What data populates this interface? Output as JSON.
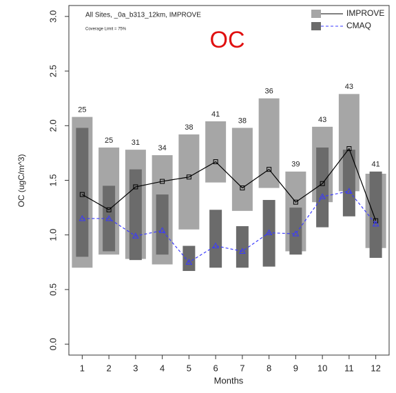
{
  "chart_data": {
    "type": "range",
    "title": "OC",
    "subtitle": "All Sites, _0a_b313_12km, IMPROVE",
    "note": "Coverage Limit = 75%",
    "x_label": "Months",
    "y_label": "OC (ugC/m^3)",
    "x": [
      1,
      2,
      3,
      4,
      5,
      6,
      7,
      8,
      9,
      10,
      11,
      12
    ],
    "xlim": [
      0.5,
      12.5
    ],
    "xticks": [
      1,
      2,
      3,
      4,
      5,
      6,
      7,
      8,
      9,
      10,
      11,
      12
    ],
    "ylim": [
      -0.1,
      3.1
    ],
    "yticks": [
      {
        "value": 0,
        "label": "0.0"
      },
      0.5,
      {
        "value": 1,
        "label": "1.0"
      },
      1.5,
      {
        "value": 2,
        "label": "2.0"
      },
      2.5,
      {
        "value": 3,
        "label": "3.0"
      }
    ],
    "counts": [
      25,
      25,
      31,
      34,
      38,
      41,
      38,
      36,
      39,
      43,
      43,
      41
    ],
    "series": [
      {
        "name": "IMPROVE",
        "color": "#a6a6a6",
        "line_color": "#000000",
        "line_style": "solid",
        "marker": "square",
        "low": [
          0.7,
          0.82,
          0.78,
          0.73,
          1.05,
          1.48,
          1.22,
          1.43,
          0.85,
          1.3,
          1.4,
          0.88
        ],
        "high": [
          2.08,
          1.8,
          1.78,
          1.73,
          1.92,
          2.04,
          1.98,
          2.25,
          1.58,
          1.99,
          2.29,
          1.56
        ],
        "values": [
          1.37,
          1.23,
          1.44,
          1.49,
          1.53,
          1.67,
          1.43,
          1.6,
          1.3,
          1.47,
          1.79,
          1.13
        ]
      },
      {
        "name": "CMAQ",
        "color": "#6b6b6b",
        "line_color": "#3a3aff",
        "line_style": "dashed",
        "marker": "triangle",
        "low": [
          0.8,
          0.85,
          0.77,
          0.82,
          0.67,
          0.7,
          0.7,
          0.71,
          0.82,
          1.07,
          1.17,
          0.79
        ],
        "high": [
          1.98,
          1.45,
          1.6,
          1.37,
          0.9,
          1.23,
          1.08,
          1.32,
          1.25,
          1.8,
          1.78,
          1.58
        ],
        "values": [
          1.15,
          1.15,
          0.99,
          1.04,
          0.75,
          0.9,
          0.85,
          1.02,
          1.01,
          1.35,
          1.4,
          1.1
        ]
      }
    ]
  }
}
